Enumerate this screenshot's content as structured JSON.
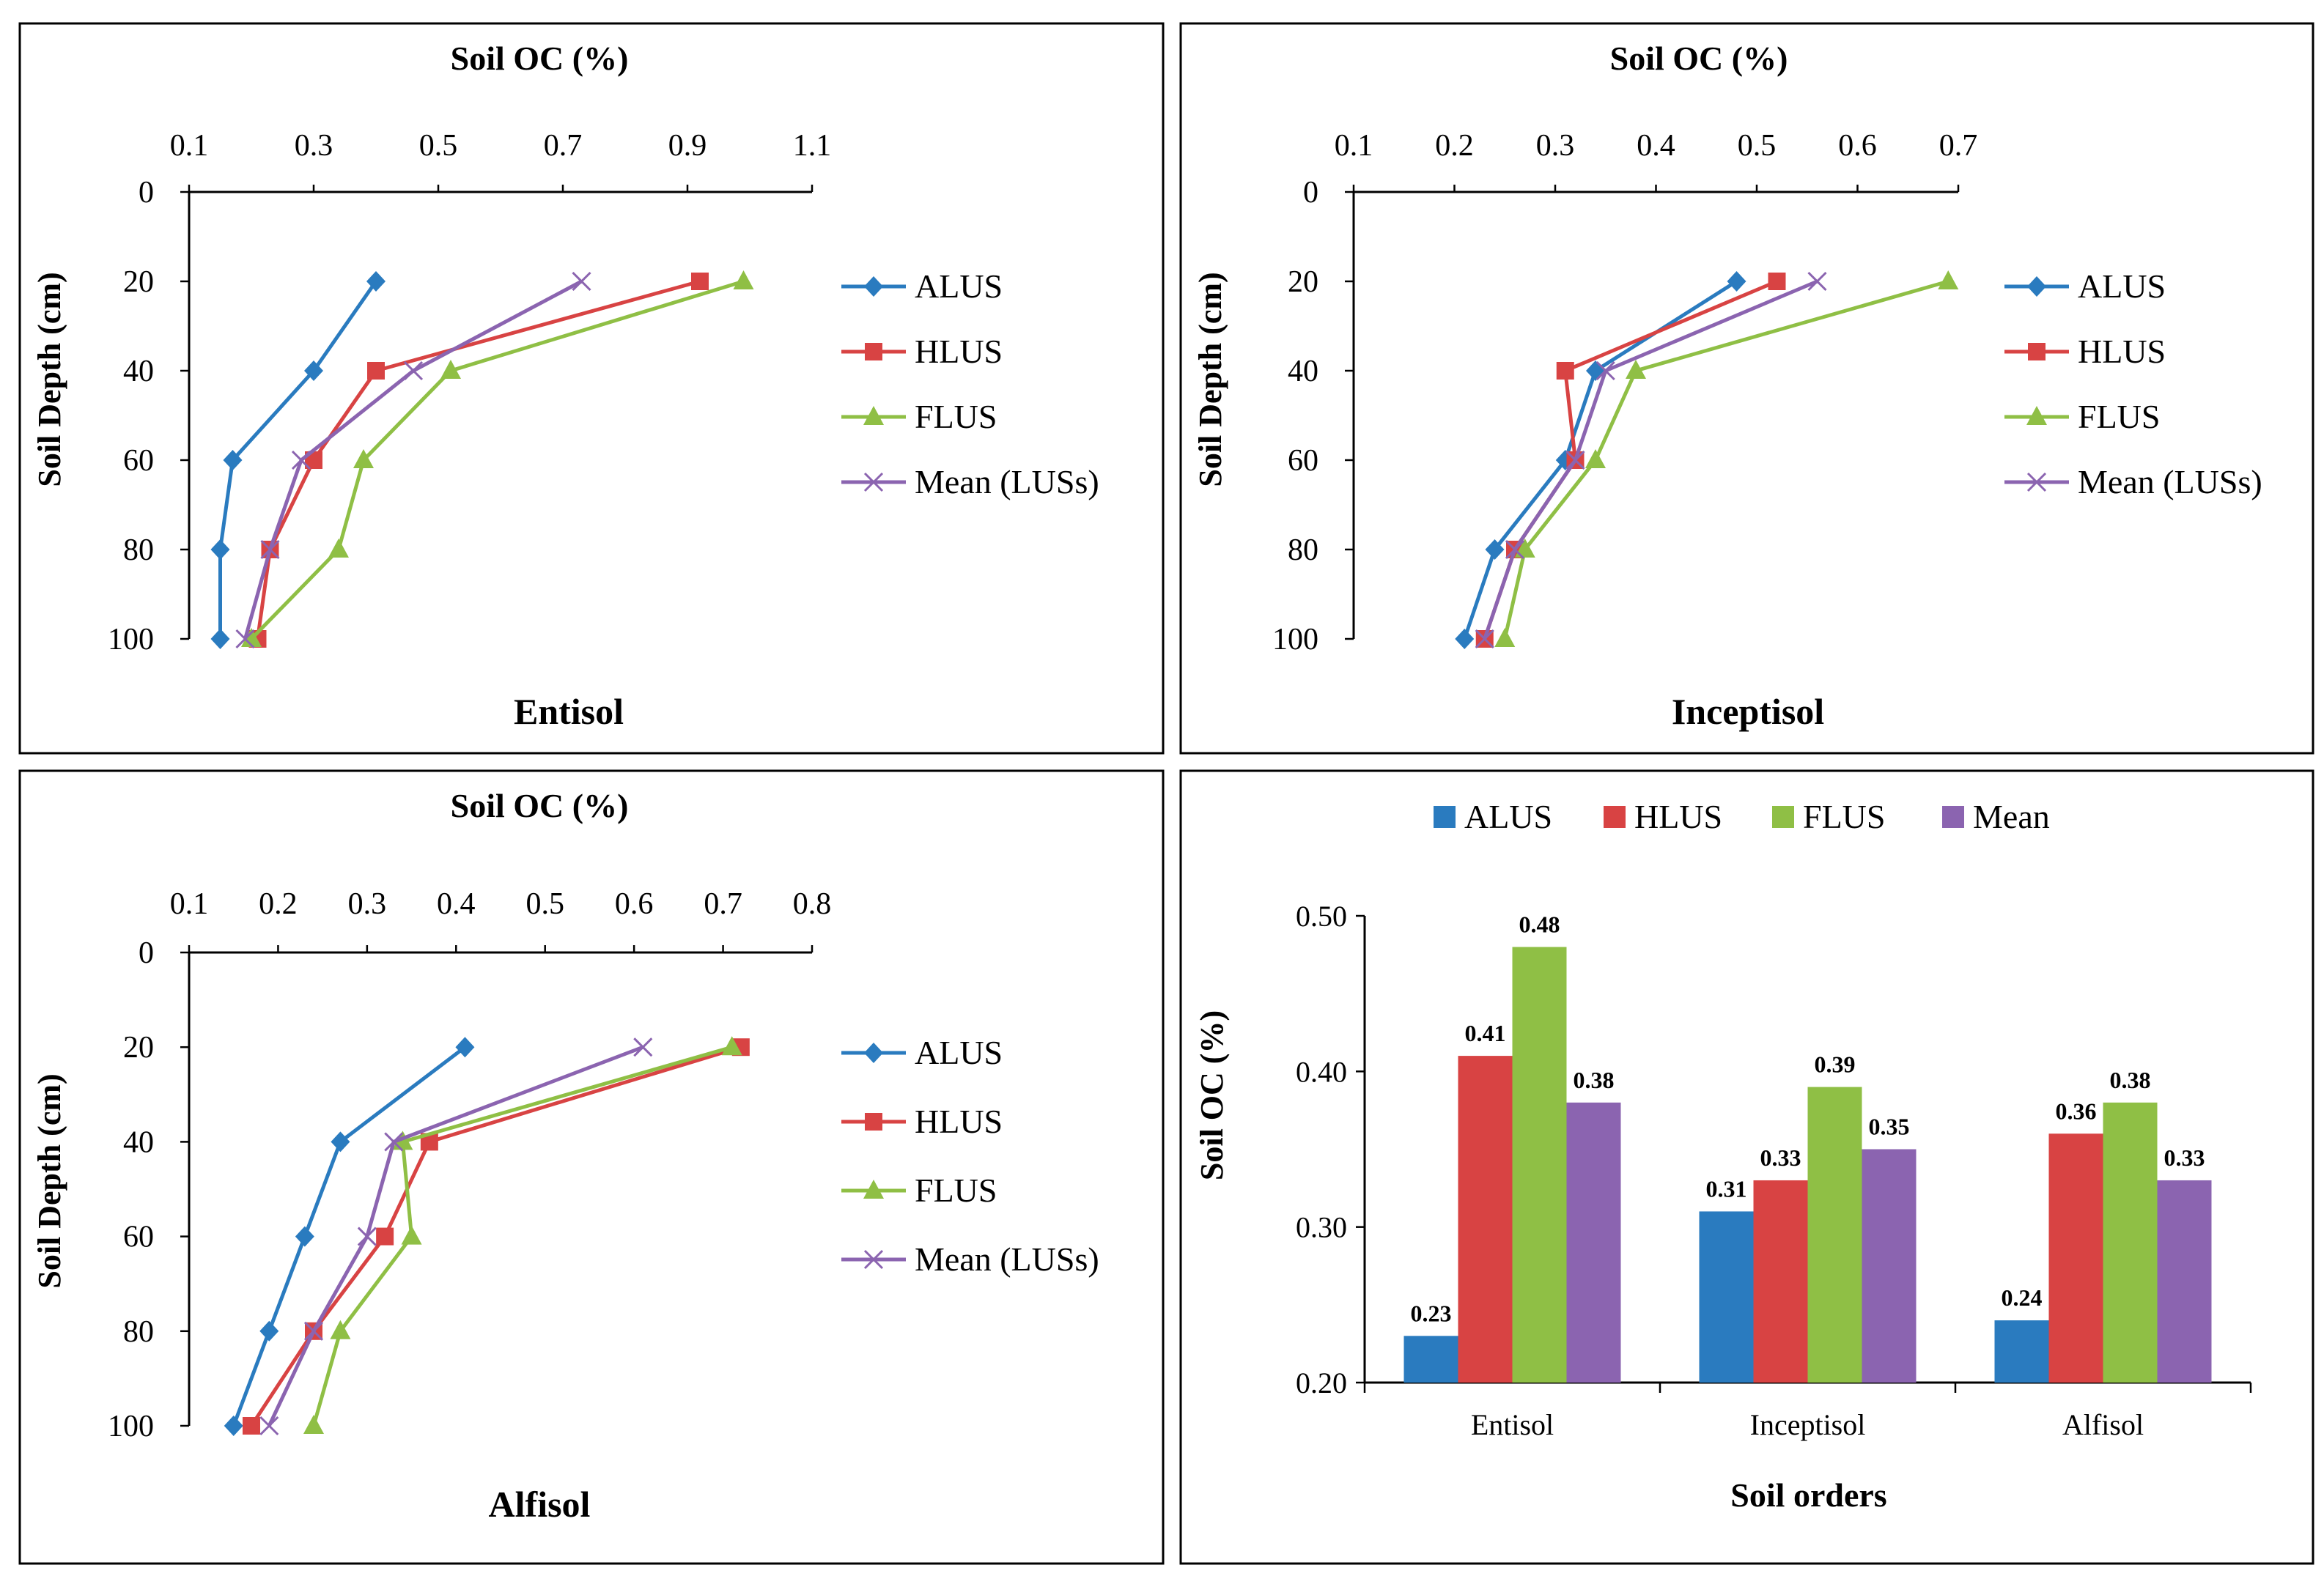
{
  "chart_data": [
    {
      "type": "line",
      "panel": "entisol",
      "title": "Soil OC (%)",
      "subtitle": "Entisol",
      "xlabel": "Soil OC (%)",
      "ylabel": "Soil Depth (cm)",
      "xlim": [
        0.1,
        1.1
      ],
      "xticks": [
        0.1,
        0.3,
        0.5,
        0.7,
        0.9,
        1.1
      ],
      "ylim": [
        0,
        100
      ],
      "yticks": [
        0,
        20,
        40,
        60,
        80,
        100
      ],
      "y": [
        20,
        40,
        60,
        80,
        100
      ],
      "series": [
        {
          "name": "ALUS",
          "color": "#2a7bbf",
          "marker": "diamond",
          "values": [
            0.4,
            0.3,
            0.17,
            0.15,
            0.15
          ]
        },
        {
          "name": "HLUS",
          "color": "#d84343",
          "marker": "square",
          "values": [
            0.92,
            0.4,
            0.3,
            0.23,
            0.21
          ]
        },
        {
          "name": "FLUS",
          "color": "#8fbf45",
          "marker": "triangle",
          "values": [
            0.99,
            0.52,
            0.38,
            0.34,
            0.2
          ]
        },
        {
          "name": "Mean (LUSs)",
          "color": "#8b64b0",
          "marker": "x",
          "values": [
            0.73,
            0.46,
            0.28,
            0.23,
            0.19
          ]
        }
      ]
    },
    {
      "type": "line",
      "panel": "inceptisol",
      "title": "Soil OC (%)",
      "subtitle": "Inceptisol",
      "xlabel": "Soil OC (%)",
      "ylabel": "Soil Depth (cm)",
      "xlim": [
        0.1,
        0.7
      ],
      "xticks": [
        0.1,
        0.2,
        0.3,
        0.4,
        0.5,
        0.6,
        0.7
      ],
      "ylim": [
        0,
        100
      ],
      "yticks": [
        0,
        20,
        40,
        60,
        80,
        100
      ],
      "y": [
        20,
        40,
        60,
        80,
        100
      ],
      "series": [
        {
          "name": "ALUS",
          "color": "#2a7bbf",
          "marker": "diamond",
          "values": [
            0.48,
            0.34,
            0.31,
            0.24,
            0.21
          ]
        },
        {
          "name": "HLUS",
          "color": "#d84343",
          "marker": "square",
          "values": [
            0.52,
            0.31,
            0.32,
            0.26,
            0.23
          ]
        },
        {
          "name": "FLUS",
          "color": "#8fbf45",
          "marker": "triangle",
          "values": [
            0.69,
            0.38,
            0.34,
            0.27,
            0.25
          ]
        },
        {
          "name": "Mean (LUSs)",
          "color": "#8b64b0",
          "marker": "x",
          "values": [
            0.56,
            0.35,
            0.32,
            0.26,
            0.23
          ]
        }
      ]
    },
    {
      "type": "line",
      "panel": "alfisol",
      "title": "Soil OC (%)",
      "subtitle": "Alfisol",
      "xlabel": "Soil OC (%)",
      "ylabel": "Soil Depth (cm)",
      "xlim": [
        0.1,
        0.8
      ],
      "xticks": [
        0.1,
        0.2,
        0.3,
        0.4,
        0.5,
        0.6,
        0.7,
        0.8
      ],
      "ylim": [
        0,
        100
      ],
      "yticks": [
        0,
        20,
        40,
        60,
        80,
        100
      ],
      "y": [
        20,
        40,
        60,
        80,
        100
      ],
      "series": [
        {
          "name": "ALUS",
          "color": "#2a7bbf",
          "marker": "diamond",
          "values": [
            0.41,
            0.27,
            0.23,
            0.19,
            0.15
          ]
        },
        {
          "name": "HLUS",
          "color": "#d84343",
          "marker": "square",
          "values": [
            0.72,
            0.37,
            0.32,
            0.24,
            0.17
          ]
        },
        {
          "name": "FLUS",
          "color": "#8fbf45",
          "marker": "triangle",
          "values": [
            0.71,
            0.34,
            0.35,
            0.27,
            0.24
          ]
        },
        {
          "name": "Mean (LUSs)",
          "color": "#8b64b0",
          "marker": "x",
          "values": [
            0.61,
            0.33,
            0.3,
            0.24,
            0.19
          ]
        }
      ]
    },
    {
      "type": "bar",
      "panel": "orders",
      "title": "",
      "xlabel": "Soil orders",
      "ylabel": "Soil OC (%)",
      "ylim": [
        0.2,
        0.5
      ],
      "yticks": [
        "0.20",
        "0.30",
        "0.40",
        "0.50"
      ],
      "categories": [
        "Entisol",
        "Inceptisol",
        "Alfisol"
      ],
      "legend": "top",
      "series": [
        {
          "name": "ALUS",
          "color": "#2a7bbf",
          "values": [
            0.23,
            0.31,
            0.24
          ]
        },
        {
          "name": "HLUS",
          "color": "#d84343",
          "values": [
            0.41,
            0.33,
            0.36
          ]
        },
        {
          "name": "FLUS",
          "color": "#8fbf45",
          "values": [
            0.48,
            0.39,
            0.38
          ]
        },
        {
          "name": "Mean",
          "color": "#8b64b0",
          "values": [
            0.38,
            0.35,
            0.33
          ]
        }
      ]
    }
  ]
}
